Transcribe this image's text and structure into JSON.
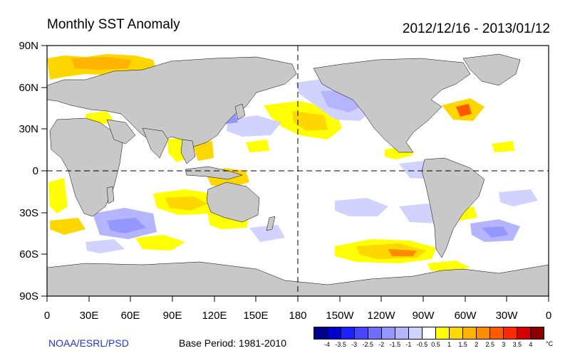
{
  "title": "Monthly SST Anomaly",
  "date_range": "2012/12/16 - 2013/01/12",
  "credit": "NOAA/ESRL/PSD",
  "base_period": "Base Period: 1981-2010",
  "colorbar": {
    "unit": "°C",
    "levels": [
      "-4",
      "-3.5",
      "-3",
      "-2.5",
      "-2",
      "-1.5",
      "-1",
      "-0.5",
      "0.5",
      "1",
      "1.5",
      "2",
      "2.5",
      "3",
      "3.5",
      "4"
    ],
    "colors": [
      "#00008b",
      "#0000cd",
      "#1e1eff",
      "#4646ff",
      "#6e6eff",
      "#9696ff",
      "#b4b4ff",
      "#d2d2ff",
      "#ffffff",
      "#ffff00",
      "#ffd700",
      "#ffb400",
      "#ff8c00",
      "#ff5a00",
      "#ff2800",
      "#d20000",
      "#8b0000"
    ]
  },
  "map": {
    "lat_labels": [
      "90N",
      "60N",
      "30N",
      "0",
      "30S",
      "60S",
      "90S"
    ],
    "lon_labels": [
      "0",
      "30E",
      "60E",
      "90E",
      "120E",
      "150E",
      "180",
      "150W",
      "120W",
      "90W",
      "60W",
      "30W",
      "0"
    ],
    "land_color": "#c8c8c8",
    "ocean_color": "#ffffff"
  }
}
